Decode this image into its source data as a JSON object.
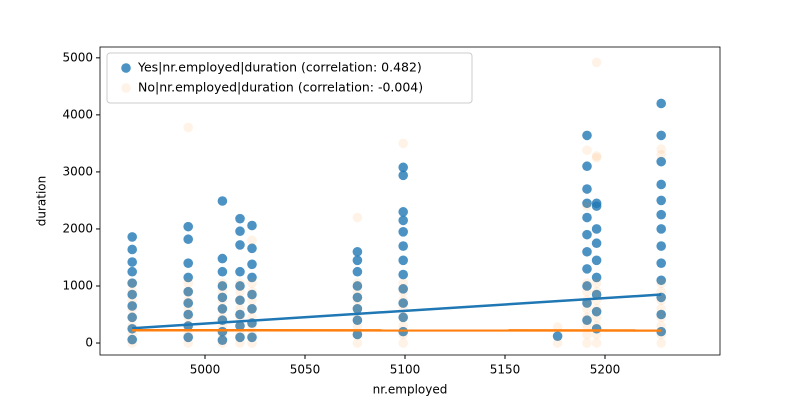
{
  "chart_data": {
    "type": "scatter",
    "x_label": "nr.employed",
    "y_label": "duration",
    "xlim": [
      4947.5,
      5257.5
    ],
    "ylim": [
      -210,
      5190
    ],
    "xticks": [
      5000,
      5050,
      5100,
      5150,
      5200
    ],
    "yticks": [
      0,
      1000,
      2000,
      3000,
      4000,
      5000
    ],
    "legend": "upper left",
    "series": [
      {
        "name": "Yes|nr.employed|duration (correlation: 0.482)",
        "color": "#1f77b4",
        "alpha": 0.8,
        "x": [
          4963.6,
          4963.6,
          4963.6,
          4963.6,
          4963.6,
          4963.6,
          4963.6,
          4963.6,
          4963.6,
          4963.6,
          4991.6,
          4991.6,
          4991.6,
          4991.6,
          4991.6,
          4991.6,
          4991.6,
          4991.6,
          4991.6,
          5008.7,
          5008.7,
          5008.7,
          5008.7,
          5008.7,
          5008.7,
          5008.7,
          5008.7,
          5008.7,
          5017.5,
          5017.5,
          5017.5,
          5017.5,
          5017.5,
          5017.5,
          5017.5,
          5017.5,
          5017.5,
          5023.5,
          5023.5,
          5023.5,
          5023.5,
          5023.5,
          5023.5,
          5023.5,
          5023.5,
          5076.2,
          5076.2,
          5076.2,
          5076.2,
          5076.2,
          5076.2,
          5076.2,
          5076.2,
          5099.1,
          5099.1,
          5099.1,
          5099.1,
          5099.1,
          5099.1,
          5099.1,
          5099.1,
          5099.1,
          5099.1,
          5099.1,
          5099.1,
          5176.3,
          5191.0,
          5191.0,
          5191.0,
          5191.0,
          5191.0,
          5191.0,
          5191.0,
          5191.0,
          5191.0,
          5191.0,
          5191.0,
          5195.8,
          5195.8,
          5195.8,
          5195.8,
          5195.8,
          5195.8,
          5195.8,
          5195.8,
          5195.8,
          5228.1,
          5228.1,
          5228.1,
          5228.1,
          5228.1,
          5228.1,
          5228.1,
          5228.1,
          5228.1,
          5228.1,
          5228.1,
          5228.1,
          5228.1
        ],
        "values": [
          1860,
          1640,
          1420,
          1250,
          1050,
          850,
          650,
          450,
          250,
          60,
          2040,
          1820,
          1400,
          1150,
          900,
          700,
          500,
          300,
          100,
          2490,
          1480,
          1250,
          1000,
          800,
          600,
          400,
          200,
          50,
          2180,
          1960,
          1720,
          1250,
          1000,
          750,
          500,
          300,
          100,
          2060,
          1660,
          1380,
          1150,
          850,
          600,
          350,
          100,
          1600,
          1450,
          1250,
          1000,
          800,
          600,
          400,
          150,
          3080,
          2940,
          2300,
          2150,
          1950,
          1700,
          1450,
          1200,
          950,
          700,
          450,
          200,
          120,
          3640,
          3100,
          2700,
          2450,
          2200,
          1900,
          1600,
          1300,
          1000,
          700,
          400,
          2450,
          2400,
          2000,
          1750,
          1450,
          1150,
          850,
          550,
          250,
          4200,
          3640,
          3180,
          2780,
          2500,
          2250,
          2000,
          1700,
          1400,
          1100,
          800,
          500,
          200
        ],
        "fit": {
          "x": [
            4963.6,
            5228.1
          ],
          "values": [
            260,
            850
          ]
        }
      },
      {
        "name": "No|nr.employed|duration (correlation: -0.004)",
        "color": "#ff7f0e",
        "alpha": 0.1,
        "x": [
          4963.6,
          4963.6,
          4963.6,
          4963.6,
          4963.6,
          4963.6,
          4963.6,
          4963.6,
          4991.6,
          4991.6,
          4991.6,
          4991.6,
          4991.6,
          4991.6,
          4991.6,
          4991.6,
          4991.6,
          5008.7,
          5008.7,
          5008.7,
          5008.7,
          5008.7,
          5008.7,
          5008.7,
          5008.7,
          5017.5,
          5017.5,
          5017.5,
          5017.5,
          5017.5,
          5017.5,
          5017.5,
          5017.5,
          5023.5,
          5023.5,
          5023.5,
          5023.5,
          5023.5,
          5023.5,
          5023.5,
          5023.5,
          5023.5,
          5076.2,
          5076.2,
          5076.2,
          5076.2,
          5076.2,
          5076.2,
          5076.2,
          5076.2,
          5076.2,
          5099.1,
          5099.1,
          5099.1,
          5099.1,
          5099.1,
          5099.1,
          5099.1,
          5099.1,
          5099.1,
          5176.3,
          5176.3,
          5191.0,
          5191.0,
          5191.0,
          5191.0,
          5191.0,
          5191.0,
          5191.0,
          5191.0,
          5191.0,
          5191.0,
          5195.8,
          5195.8,
          5195.8,
          5195.8,
          5195.8,
          5195.8,
          5195.8,
          5195.8,
          5195.8,
          5195.8,
          5195.8,
          5228.1,
          5228.1,
          5228.1,
          5228.1,
          5228.1,
          5228.1,
          5228.1,
          5228.1,
          5228.1,
          5228.1
        ],
        "values": [
          0,
          150,
          300,
          450,
          600,
          750,
          900,
          1050,
          0,
          150,
          300,
          450,
          600,
          750,
          900,
          1050,
          3780,
          0,
          150,
          300,
          450,
          600,
          750,
          900,
          1050,
          0,
          150,
          300,
          450,
          600,
          750,
          900,
          1050,
          0,
          150,
          300,
          450,
          600,
          750,
          900,
          1050,
          1800,
          0,
          150,
          300,
          450,
          600,
          750,
          900,
          1050,
          2200,
          0,
          150,
          300,
          450,
          600,
          750,
          900,
          1050,
          3500,
          0,
          280,
          0,
          150,
          300,
          450,
          600,
          750,
          900,
          1050,
          2400,
          3380,
          0,
          150,
          300,
          450,
          600,
          750,
          900,
          1050,
          3250,
          3280,
          4920,
          0,
          150,
          300,
          450,
          600,
          750,
          900,
          1050,
          3300,
          3400
        ],
        "fit": {
          "x": [
            4963.6,
            5228.1
          ],
          "values": [
            225,
            220
          ]
        }
      }
    ]
  }
}
